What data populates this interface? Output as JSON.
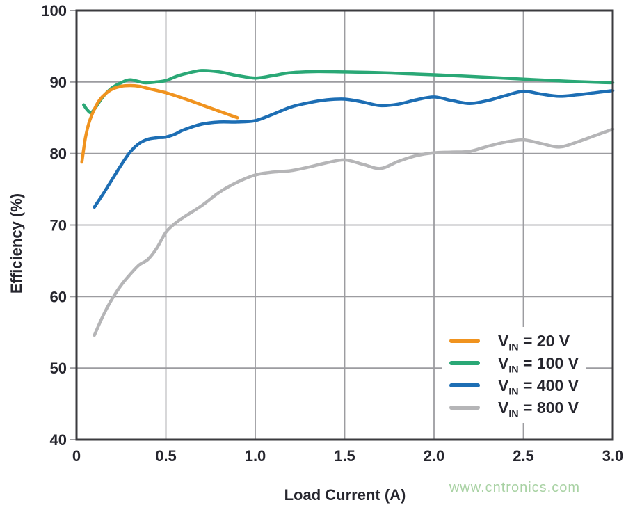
{
  "figure": {
    "watermark_text": "www.cntronics.com",
    "watermark_color": "#a9d2a4",
    "text_color": "#26262e",
    "frame_color": "#3b3b3f",
    "grid_color": "#9c9ca0",
    "background": "#ffffff"
  },
  "chart_data": {
    "type": "line",
    "title": "",
    "xlabel": "Load Current (A)",
    "ylabel": "Efficiency (%)",
    "xlim": [
      0,
      3.0
    ],
    "ylim": [
      40,
      100
    ],
    "grid": true,
    "legend_position": "inside lower right",
    "x_tick_values": [
      0,
      0.5,
      1.0,
      1.5,
      2.0,
      2.5,
      3.0
    ],
    "x_tick_labels": [
      "0",
      "0.5",
      "1.0",
      "1.5",
      "2.0",
      "2.5",
      "3.0"
    ],
    "y_tick_values": [
      40,
      50,
      60,
      70,
      80,
      90,
      100
    ],
    "y_tick_labels": [
      "40",
      "50",
      "60",
      "70",
      "80",
      "90",
      "100"
    ],
    "series": [
      {
        "name": "VIN = 20 V",
        "legend": {
          "base": "V",
          "sub": "IN",
          "rest": "= 20 V"
        },
        "color": "#f0931f",
        "x": [
          0.03,
          0.05,
          0.07,
          0.1,
          0.13,
          0.16,
          0.2,
          0.25,
          0.3,
          0.35,
          0.4,
          0.5,
          0.6,
          0.7,
          0.8,
          0.9
        ],
        "y": [
          78.8,
          82.2,
          84.3,
          86.2,
          87.5,
          88.3,
          89.0,
          89.4,
          89.5,
          89.4,
          89.1,
          88.5,
          87.7,
          86.8,
          85.9,
          85.0
        ]
      },
      {
        "name": "VIN = 100 V",
        "legend": {
          "base": "V",
          "sub": "IN",
          "rest": "= 100 V"
        },
        "color": "#2aa876",
        "x": [
          0.04,
          0.06,
          0.08,
          0.1,
          0.15,
          0.2,
          0.25,
          0.3,
          0.38,
          0.45,
          0.5,
          0.55,
          0.6,
          0.7,
          0.8,
          0.9,
          1.0,
          1.1,
          1.2,
          1.35,
          1.5,
          1.7,
          1.9,
          2.1,
          2.3,
          2.5,
          2.7,
          2.9,
          3.0
        ],
        "y": [
          86.8,
          86.1,
          85.7,
          86.2,
          88.0,
          89.2,
          89.9,
          90.3,
          89.9,
          90.0,
          90.2,
          90.7,
          91.1,
          91.6,
          91.4,
          90.9,
          90.55,
          90.9,
          91.3,
          91.45,
          91.4,
          91.3,
          91.1,
          90.9,
          90.65,
          90.4,
          90.15,
          89.95,
          89.9
        ]
      },
      {
        "name": "VIN = 400 V",
        "legend": {
          "base": "V",
          "sub": "IN",
          "rest": "= 400 V"
        },
        "color": "#1d6eb4",
        "x": [
          0.1,
          0.15,
          0.2,
          0.25,
          0.3,
          0.35,
          0.4,
          0.45,
          0.5,
          0.55,
          0.6,
          0.7,
          0.8,
          0.9,
          1.0,
          1.1,
          1.2,
          1.3,
          1.4,
          1.5,
          1.6,
          1.7,
          1.8,
          1.9,
          2.0,
          2.1,
          2.2,
          2.3,
          2.4,
          2.5,
          2.6,
          2.7,
          2.8,
          2.9,
          3.0
        ],
        "y": [
          72.5,
          74.4,
          76.4,
          78.4,
          80.2,
          81.4,
          82.0,
          82.2,
          82.3,
          82.7,
          83.3,
          84.1,
          84.4,
          84.4,
          84.6,
          85.5,
          86.5,
          87.1,
          87.5,
          87.6,
          87.2,
          86.7,
          86.9,
          87.5,
          87.9,
          87.4,
          87.0,
          87.4,
          88.1,
          88.7,
          88.3,
          88.0,
          88.2,
          88.5,
          88.8
        ]
      },
      {
        "name": "VIN = 800 V",
        "legend": {
          "base": "V",
          "sub": "IN",
          "rest": "= 800 V"
        },
        "color": "#b5b5b7",
        "x": [
          0.1,
          0.15,
          0.2,
          0.25,
          0.3,
          0.35,
          0.4,
          0.45,
          0.5,
          0.55,
          0.6,
          0.7,
          0.8,
          0.9,
          1.0,
          1.1,
          1.2,
          1.3,
          1.4,
          1.5,
          1.6,
          1.7,
          1.8,
          1.9,
          2.0,
          2.1,
          2.2,
          2.3,
          2.4,
          2.5,
          2.6,
          2.7,
          2.8,
          2.9,
          3.0
        ],
        "y": [
          54.6,
          57.4,
          59.7,
          61.6,
          63.1,
          64.4,
          65.2,
          66.8,
          69.0,
          70.2,
          71.1,
          72.7,
          74.6,
          76.0,
          77.0,
          77.4,
          77.6,
          78.1,
          78.7,
          79.1,
          78.5,
          77.9,
          78.9,
          79.7,
          80.1,
          80.2,
          80.3,
          81.0,
          81.6,
          81.9,
          81.4,
          80.9,
          81.6,
          82.5,
          83.4
        ]
      }
    ]
  }
}
